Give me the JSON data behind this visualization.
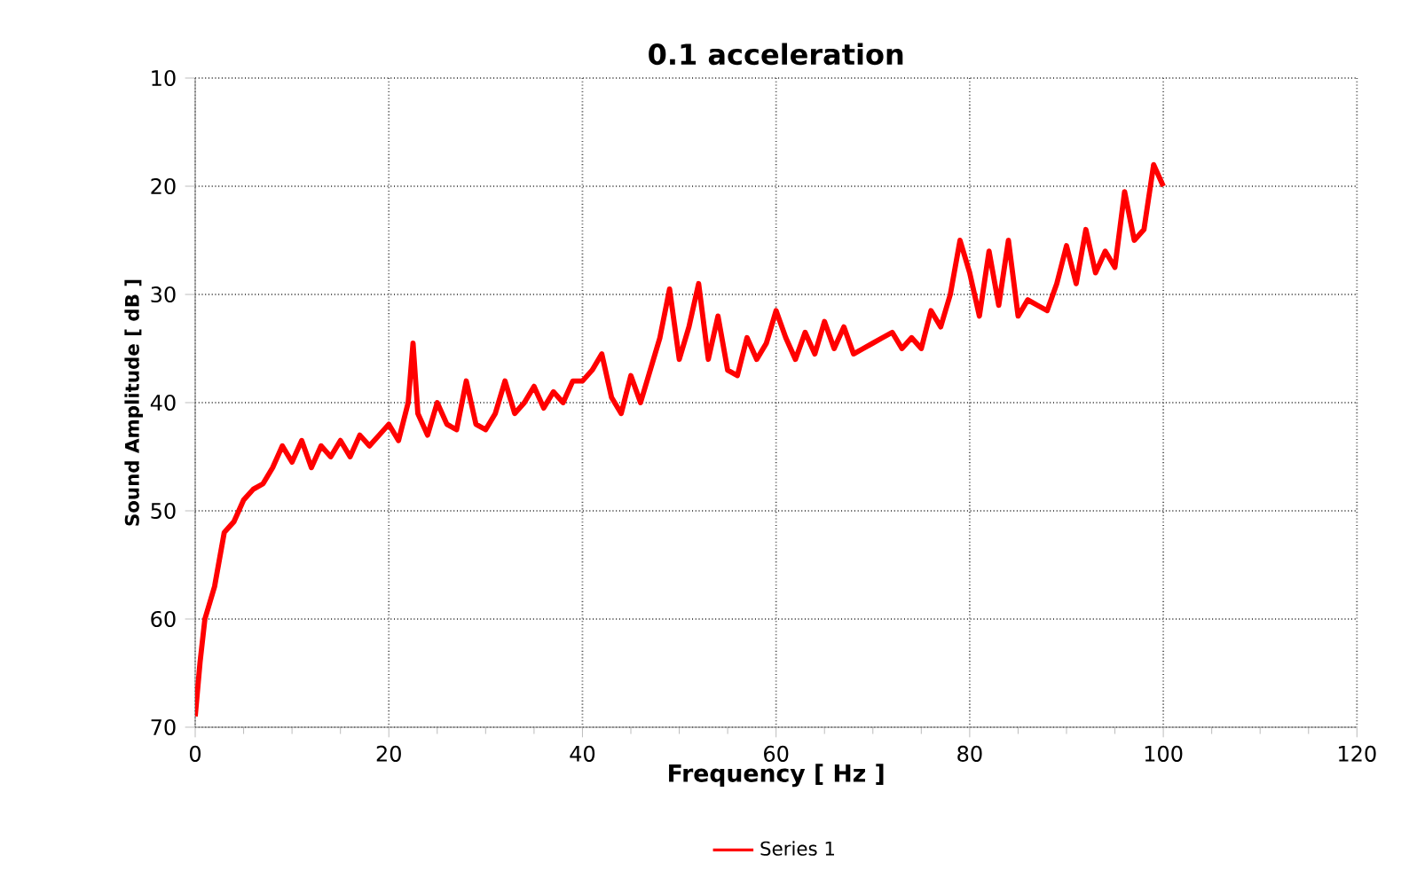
{
  "chart_data": {
    "type": "line",
    "title": "0.1 acceleration",
    "xlabel": "Frequency [ Hz ]",
    "ylabel": "Sound Amplitude [ dB ]",
    "xlim": [
      0,
      120
    ],
    "xticks": [
      0,
      20,
      40,
      60,
      80,
      100,
      120
    ],
    "ylim": [
      70,
      10
    ],
    "yticks": [
      10,
      20,
      30,
      40,
      50,
      60,
      70
    ],
    "grid": true,
    "legend": "bottom",
    "line_style": "solid",
    "series": [
      {
        "name": "Series 1",
        "color": "#ff0000",
        "x": [
          0,
          0.5,
          1,
          2,
          3,
          4,
          5,
          6,
          7,
          8,
          9,
          10,
          11,
          12,
          13,
          14,
          15,
          16,
          17,
          18,
          19,
          20,
          21,
          22,
          22.5,
          23,
          24,
          25,
          26,
          27,
          28,
          29,
          30,
          31,
          32,
          33,
          34,
          35,
          36,
          37,
          38,
          39,
          40,
          41,
          42,
          43,
          44,
          45,
          46,
          47,
          48,
          49,
          50,
          51,
          52,
          53,
          54,
          55,
          56,
          57,
          58,
          59,
          60,
          61,
          62,
          63,
          64,
          65,
          66,
          67,
          68,
          69,
          70,
          71,
          72,
          73,
          74,
          75,
          76,
          77,
          78,
          79,
          80,
          81,
          82,
          83,
          84,
          85,
          86,
          87,
          88,
          89,
          90,
          91,
          92,
          93,
          94,
          95,
          96,
          97,
          98,
          99,
          100
        ],
        "values": [
          69,
          64,
          60,
          57,
          52,
          51,
          49,
          48,
          47.5,
          46,
          44,
          45.5,
          43.5,
          46,
          44,
          45,
          43.5,
          45,
          43,
          44,
          43,
          42,
          43.5,
          40,
          34.5,
          41,
          43,
          40,
          42,
          42.5,
          38,
          42,
          42.5,
          41,
          38,
          41,
          40,
          38.5,
          40.5,
          39,
          40,
          38,
          38,
          37,
          35.5,
          39.5,
          41,
          37.5,
          40,
          37,
          34,
          29.5,
          36,
          33,
          29,
          36,
          32,
          37,
          37.5,
          34,
          36,
          34.5,
          31.5,
          34,
          36,
          33.5,
          35.5,
          32.5,
          35,
          33,
          35.5,
          35,
          34.5,
          34,
          33.5,
          35,
          34,
          35,
          31.5,
          33,
          30,
          25,
          28,
          32,
          26,
          31,
          25,
          32,
          30.5,
          31,
          31.5,
          29,
          25.5,
          29,
          24,
          28,
          26,
          27.5,
          20.5,
          25,
          24,
          18,
          20
        ]
      }
    ]
  }
}
